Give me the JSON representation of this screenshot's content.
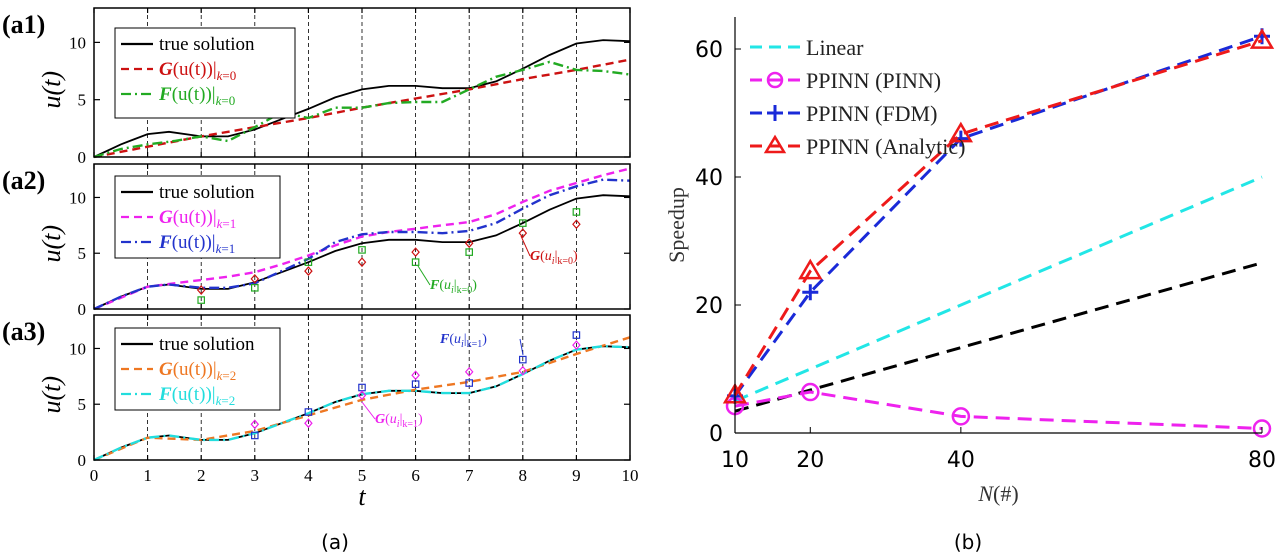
{
  "figure": {
    "caption_a": "(a)",
    "caption_b": "(b)"
  },
  "left": {
    "x_label": "t",
    "y_label": "u(t)",
    "x_ticks": [
      0,
      1,
      2,
      3,
      4,
      5,
      6,
      7,
      8,
      9,
      10
    ],
    "y_ticks": [
      0,
      5,
      10
    ],
    "panels": [
      {
        "tag": "(a1)",
        "legend": [
          "true solution",
          "G(u(t)|k=0)",
          "F(u(t)|k=0)"
        ],
        "annotations": []
      },
      {
        "tag": "(a2)",
        "legend": [
          "true solution",
          "G(u(t)|k=1)",
          "F(u(t)|k=1)"
        ],
        "annotations": [
          "F(ui|k=0)",
          "G(ui|k=0)"
        ]
      },
      {
        "tag": "(a3)",
        "legend": [
          "true solution",
          "G(u(t)|k=2)",
          "F(u(t)|k=2)"
        ],
        "annotations": [
          "F(ui|k=1)",
          "G(ui|k=1)"
        ]
      }
    ]
  },
  "chart_data": [
    {
      "type": "line",
      "panel": "a1",
      "xlim": [
        0,
        10
      ],
      "ylim": [
        0,
        13
      ],
      "series": [
        {
          "name": "true solution",
          "color": "#000000",
          "style": "solid",
          "x": [
            0,
            0.5,
            1,
            1.4,
            2,
            2.5,
            3,
            3.5,
            4,
            4.5,
            5,
            5.5,
            6,
            6.5,
            7,
            7.5,
            8,
            8.5,
            9,
            9.5,
            10
          ],
          "y": [
            0,
            1.1,
            2.0,
            2.2,
            1.8,
            1.8,
            2.4,
            3.3,
            4.2,
            5.2,
            5.9,
            6.2,
            6.2,
            6.0,
            6.0,
            6.6,
            7.7,
            8.9,
            9.9,
            10.2,
            10.1
          ]
        },
        {
          "name": "G(u(t)|k=0)",
          "color": "#cc1111",
          "style": "dashed",
          "x": [
            0,
            1,
            2,
            3,
            4,
            5,
            6,
            7,
            8,
            9,
            10
          ],
          "y": [
            0,
            0.9,
            1.8,
            2.6,
            3.4,
            4.3,
            5.1,
            5.9,
            6.8,
            7.6,
            8.5
          ]
        },
        {
          "name": "F(u(t)|k=0)",
          "color": "#22aa22",
          "style": "dashdot",
          "x": [
            0,
            0.5,
            1,
            1.5,
            2,
            2.5,
            3,
            3.5,
            4,
            4.5,
            5,
            5.5,
            6,
            6.5,
            7,
            7.5,
            8,
            8.5,
            9,
            9.5,
            10
          ],
          "y": [
            0,
            0.7,
            1.1,
            1.4,
            1.8,
            1.4,
            2.6,
            3.9,
            3.4,
            4.3,
            4.3,
            4.7,
            4.8,
            4.8,
            5.9,
            7.0,
            7.6,
            8.3,
            7.6,
            7.5,
            7.2
          ]
        }
      ]
    },
    {
      "type": "line",
      "panel": "a2",
      "xlim": [
        0,
        10
      ],
      "ylim": [
        0,
        13
      ],
      "series": [
        {
          "name": "true solution",
          "color": "#000000",
          "style": "solid",
          "x": [
            0,
            0.5,
            1,
            1.4,
            2,
            2.5,
            3,
            3.5,
            4,
            4.5,
            5,
            5.5,
            6,
            6.5,
            7,
            7.5,
            8,
            8.5,
            9,
            9.5,
            10
          ],
          "y": [
            0,
            1.1,
            2.0,
            2.2,
            1.8,
            1.8,
            2.4,
            3.3,
            4.2,
            5.2,
            5.9,
            6.2,
            6.2,
            6.0,
            6.0,
            6.6,
            7.7,
            8.9,
            9.9,
            10.2,
            10.1
          ]
        },
        {
          "name": "G(u(t)|k=1)",
          "color": "#ee22ee",
          "style": "dashed",
          "x": [
            0,
            1,
            1.5,
            2,
            2.5,
            3,
            3.5,
            4,
            4.5,
            5,
            5.5,
            6,
            6.5,
            7,
            7.5,
            8,
            8.5,
            9,
            9.5,
            10
          ],
          "y": [
            0,
            2.0,
            2.3,
            2.6,
            2.9,
            3.3,
            4.0,
            4.8,
            5.7,
            6.5,
            6.9,
            7.2,
            7.5,
            7.8,
            8.5,
            9.6,
            10.6,
            11.3,
            12.0,
            12.6
          ]
        },
        {
          "name": "F(u(t)|k=1)",
          "color": "#2233cc",
          "style": "dashdot",
          "x": [
            0,
            0.5,
            1,
            1.4,
            2,
            2.5,
            3,
            3.5,
            4,
            4.5,
            5,
            5.5,
            6,
            6.5,
            7,
            7.5,
            8,
            8.5,
            9,
            9.5,
            10
          ],
          "y": [
            0,
            1.1,
            2.0,
            2.2,
            1.9,
            1.9,
            2.3,
            3.4,
            4.5,
            6.0,
            6.7,
            6.9,
            6.9,
            6.8,
            7.0,
            7.7,
            9.0,
            10.2,
            11.0,
            11.6,
            11.5
          ]
        },
        {
          "name": "F(ui|k=0)",
          "color": "#22aa22",
          "style": "marker-square",
          "x": [
            2,
            3,
            4,
            5,
            6,
            7,
            8,
            9
          ],
          "y": [
            0.8,
            1.9,
            4.2,
            5.3,
            4.2,
            5.1,
            7.7,
            8.7
          ]
        },
        {
          "name": "G(ui|k=0)",
          "color": "#cc1111",
          "style": "marker-diamond",
          "x": [
            2,
            3,
            4,
            5,
            6,
            7,
            8,
            9
          ],
          "y": [
            1.7,
            2.7,
            3.4,
            4.2,
            5.1,
            5.9,
            6.8,
            7.6
          ]
        }
      ]
    },
    {
      "type": "line",
      "panel": "a3",
      "xlim": [
        0,
        10
      ],
      "ylim": [
        0,
        13
      ],
      "series": [
        {
          "name": "true solution",
          "color": "#000000",
          "style": "solid",
          "x": [
            0,
            0.5,
            1,
            1.4,
            2,
            2.5,
            3,
            3.5,
            4,
            4.5,
            5,
            5.5,
            6,
            6.5,
            7,
            7.5,
            8,
            8.5,
            9,
            9.5,
            10
          ],
          "y": [
            0,
            1.1,
            2.0,
            2.2,
            1.8,
            1.8,
            2.4,
            3.3,
            4.2,
            5.2,
            5.9,
            6.2,
            6.2,
            6.0,
            6.0,
            6.6,
            7.7,
            8.9,
            9.9,
            10.2,
            10.1
          ]
        },
        {
          "name": "G(u(t)|k=2)",
          "color": "#ee7722",
          "style": "dashed",
          "x": [
            0,
            1,
            2,
            3,
            4,
            5,
            6,
            7,
            8,
            9,
            10
          ],
          "y": [
            0,
            2.0,
            1.8,
            2.6,
            4.0,
            5.4,
            6.3,
            7.0,
            7.9,
            9.5,
            11.0
          ]
        },
        {
          "name": "F(u(t)|k=2)",
          "color": "#22dddd",
          "style": "dashdot",
          "x": [
            0,
            0.5,
            1,
            1.4,
            2,
            2.5,
            3,
            3.5,
            4,
            4.5,
            5,
            5.5,
            6,
            6.5,
            7,
            7.5,
            8,
            8.5,
            9,
            9.5,
            10
          ],
          "y": [
            0,
            1.1,
            2.0,
            2.2,
            1.8,
            1.8,
            2.4,
            3.3,
            4.2,
            5.2,
            5.9,
            6.2,
            6.2,
            6.0,
            6.0,
            6.6,
            7.7,
            8.9,
            9.9,
            10.2,
            10.1
          ]
        },
        {
          "name": "F(ui|k=1)",
          "color": "#2233cc",
          "style": "marker-square",
          "x": [
            3,
            4,
            5,
            6,
            7,
            8,
            9
          ],
          "y": [
            2.2,
            4.3,
            6.5,
            6.8,
            6.9,
            9.0,
            11.2
          ]
        },
        {
          "name": "G(ui|k=1)",
          "color": "#ee22ee",
          "style": "marker-diamond",
          "x": [
            3,
            4,
            5,
            6,
            7,
            8,
            9
          ],
          "y": [
            3.2,
            3.3,
            5.8,
            7.6,
            7.9,
            8.0,
            10.3
          ]
        }
      ]
    },
    {
      "type": "line",
      "panel": "b",
      "xlabel": "N(#)",
      "ylabel": "Speedup",
      "xlim": [
        10,
        80
      ],
      "ylim": [
        0,
        65
      ],
      "x_ticks": [
        10,
        20,
        40,
        80
      ],
      "y_ticks": [
        0,
        20,
        40,
        60
      ],
      "legend_position": "top-left",
      "series": [
        {
          "name": "Linear",
          "color": "#22e6e6",
          "style": "dashed",
          "x": [
            10,
            80
          ],
          "y": [
            5,
            40
          ]
        },
        {
          "name": "",
          "color": "#000000",
          "style": "dashed",
          "x": [
            10,
            80
          ],
          "y": [
            3.4,
            26.6
          ]
        },
        {
          "name": "PPINN (PINN)",
          "color": "#ee22ee",
          "style": "dashed",
          "marker": "circle",
          "x": [
            10,
            20,
            40,
            80
          ],
          "y": [
            4.2,
            6.4,
            2.6,
            0.7
          ]
        },
        {
          "name": "PPINN (FDM)",
          "color": "#1a2ad8",
          "style": "dashed",
          "marker": "plus",
          "x": [
            10,
            20,
            40,
            80
          ],
          "y": [
            5.8,
            22,
            46,
            62
          ]
        },
        {
          "name": "PPINN (Analytic)",
          "color": "#ee1a1a",
          "style": "dashed",
          "marker": "triangle",
          "x": [
            10,
            20,
            40,
            80
          ],
          "y": [
            5.9,
            25.3,
            46.7,
            61.3
          ]
        }
      ]
    }
  ]
}
